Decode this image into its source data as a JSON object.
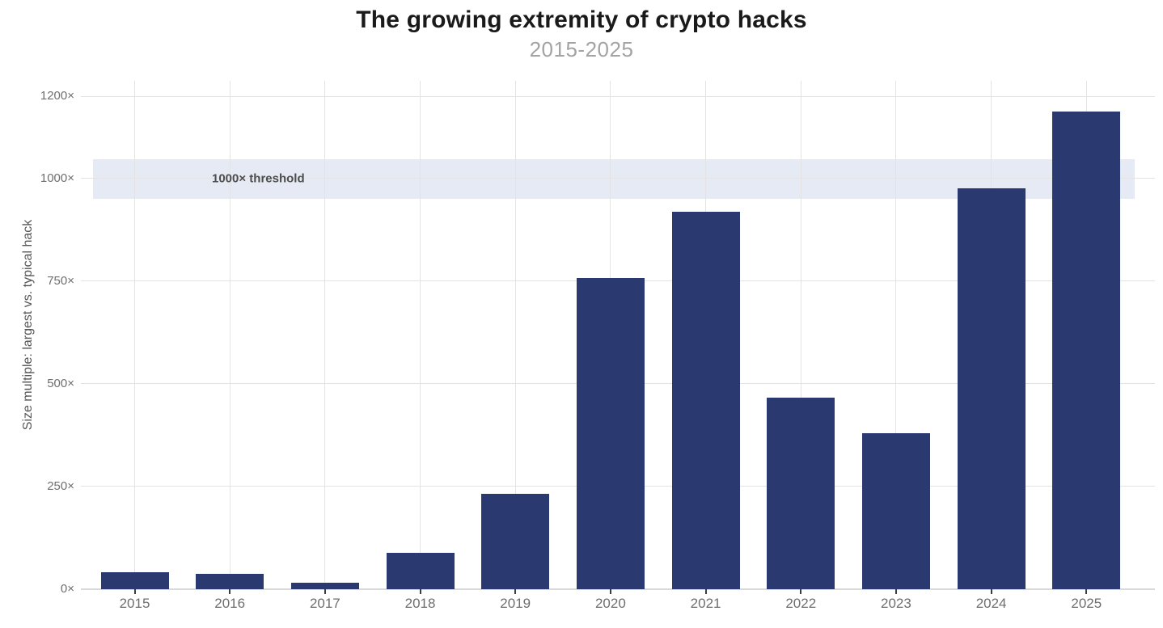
{
  "header": {
    "title": "The growing extremity of crypto hacks",
    "subtitle": "2015-2025"
  },
  "colors": {
    "bar": "#2A3A70",
    "band": "#E6EAF5",
    "grid": "#E3E3E3",
    "baseline": "#D9D9D9",
    "tick_mark": "#3C3C3C",
    "title": "#1A1A1A",
    "subtitle": "#A3A3A3",
    "tick_text": "#6E6E6E",
    "y_label": "#555555",
    "annotation_text": "#4D4D4D",
    "background": "#FFFFFF"
  },
  "chart_data": {
    "type": "bar",
    "title": "The growing extremity of crypto hacks",
    "subtitle": "2015-2025",
    "categories": [
      "2015",
      "2016",
      "2017",
      "2018",
      "2019",
      "2020",
      "2021",
      "2022",
      "2023",
      "2024",
      "2025"
    ],
    "values": [
      41,
      38,
      15,
      89,
      233,
      758,
      920,
      467,
      379,
      977,
      1164
    ],
    "xlabel": "",
    "ylabel": "Size multiple: largest vs. typical hack",
    "ylim": [
      0,
      1238
    ],
    "yticks": [
      0,
      250,
      500,
      750,
      1000,
      1200
    ],
    "ytick_suffix": "×",
    "grid": true,
    "legend": false,
    "annotation": {
      "label": "1000× threshold",
      "line_value": 1000,
      "band_min": 950,
      "band_max": 1048
    }
  }
}
